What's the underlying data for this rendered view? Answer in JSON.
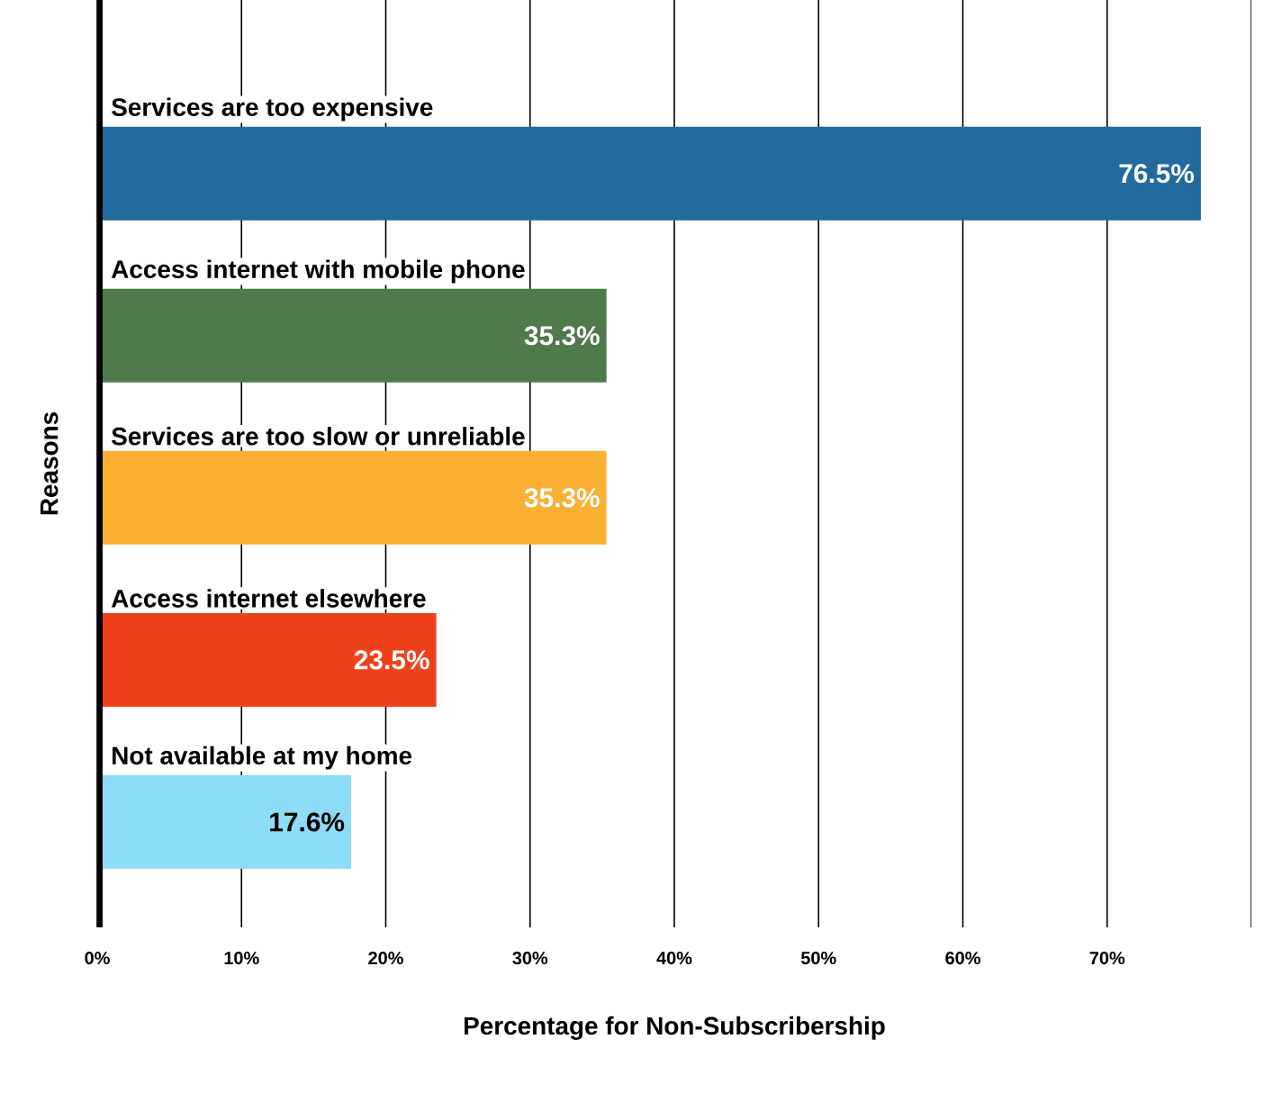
{
  "chart_data": {
    "type": "bar",
    "orientation": "horizontal",
    "categories": [
      "Services are too expensive",
      "Access internet with mobile phone",
      "Services are too slow or unreliable",
      "Access internet elsewhere",
      "Not available at my home"
    ],
    "values": [
      76.5,
      35.3,
      35.3,
      23.5,
      17.6
    ],
    "colors": [
      "#236a9e",
      "#4f7a4c",
      "#fbb033",
      "#f0401c",
      "#8ddcf8"
    ],
    "value_labels": [
      "76.5%",
      "35.3%",
      "35.3%",
      "23.5%",
      "17.6%"
    ],
    "xlim": [
      0,
      80
    ],
    "xticks": [
      {
        "value": 0,
        "label": "0%"
      },
      {
        "value": 10,
        "label": "10%"
      },
      {
        "value": 20,
        "label": "20%"
      },
      {
        "value": 30,
        "label": "30%"
      },
      {
        "value": 40,
        "label": "40%"
      },
      {
        "value": 50,
        "label": "50%"
      },
      {
        "value": 60,
        "label": "60%"
      },
      {
        "value": 70,
        "label": "70%"
      }
    ],
    "xlabel": "Percentage for Non-Subscribership",
    "ylabel": "Reasons",
    "grid": "x",
    "tick_labels": "x"
  }
}
